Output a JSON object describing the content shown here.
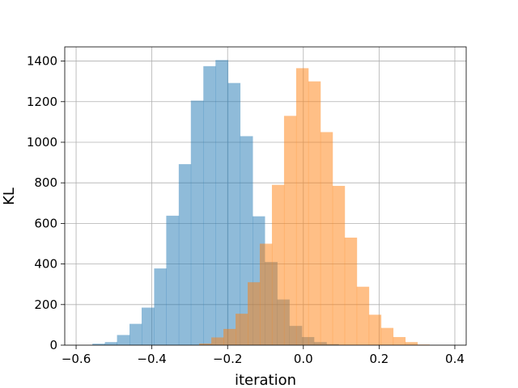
{
  "chart_data": {
    "type": "bar",
    "subtype": "overlapping-histogram",
    "title": "",
    "xlabel": "iteration",
    "ylabel": "KL",
    "xlim": [
      -0.63,
      0.43
    ],
    "ylim": [
      0,
      1470
    ],
    "xticks": [
      -0.6,
      -0.4,
      -0.2,
      0.0,
      0.2,
      0.4
    ],
    "xtick_labels": [
      "−0.6",
      "−0.4",
      "−0.2",
      "0.0",
      "0.2",
      "0.4"
    ],
    "yticks": [
      0,
      200,
      400,
      600,
      800,
      1000,
      1200,
      1400
    ],
    "ytick_labels": [
      "0",
      "200",
      "400",
      "600",
      "800",
      "1000",
      "1200",
      "1400"
    ],
    "grid": true,
    "legend": "none",
    "series": [
      {
        "color": "#1f77b4",
        "opacity": 0.5,
        "bin_edges": [
          -0.557,
          -0.524,
          -0.492,
          -0.459,
          -0.427,
          -0.394,
          -0.362,
          -0.329,
          -0.297,
          -0.264,
          -0.232,
          -0.199,
          -0.167,
          -0.134,
          -0.102,
          -0.069,
          -0.037,
          -0.004,
          0.028,
          0.061,
          0.093
        ],
        "counts": [
          7,
          15,
          50,
          105,
          185,
          378,
          638,
          892,
          1205,
          1375,
          1405,
          1292,
          1030,
          635,
          410,
          225,
          95,
          40,
          15,
          5
        ]
      },
      {
        "color": "#ff7f0e",
        "opacity": 0.5,
        "bin_edges": [
          -0.275,
          -0.243,
          -0.211,
          -0.179,
          -0.147,
          -0.115,
          -0.083,
          -0.051,
          -0.019,
          0.013,
          0.045,
          0.077,
          0.109,
          0.141,
          0.173,
          0.205,
          0.237,
          0.269,
          0.301,
          0.333
        ],
        "counts": [
          8,
          38,
          80,
          155,
          310,
          500,
          790,
          1130,
          1365,
          1300,
          1050,
          785,
          530,
          288,
          150,
          85,
          40,
          15,
          3
        ]
      }
    ]
  }
}
